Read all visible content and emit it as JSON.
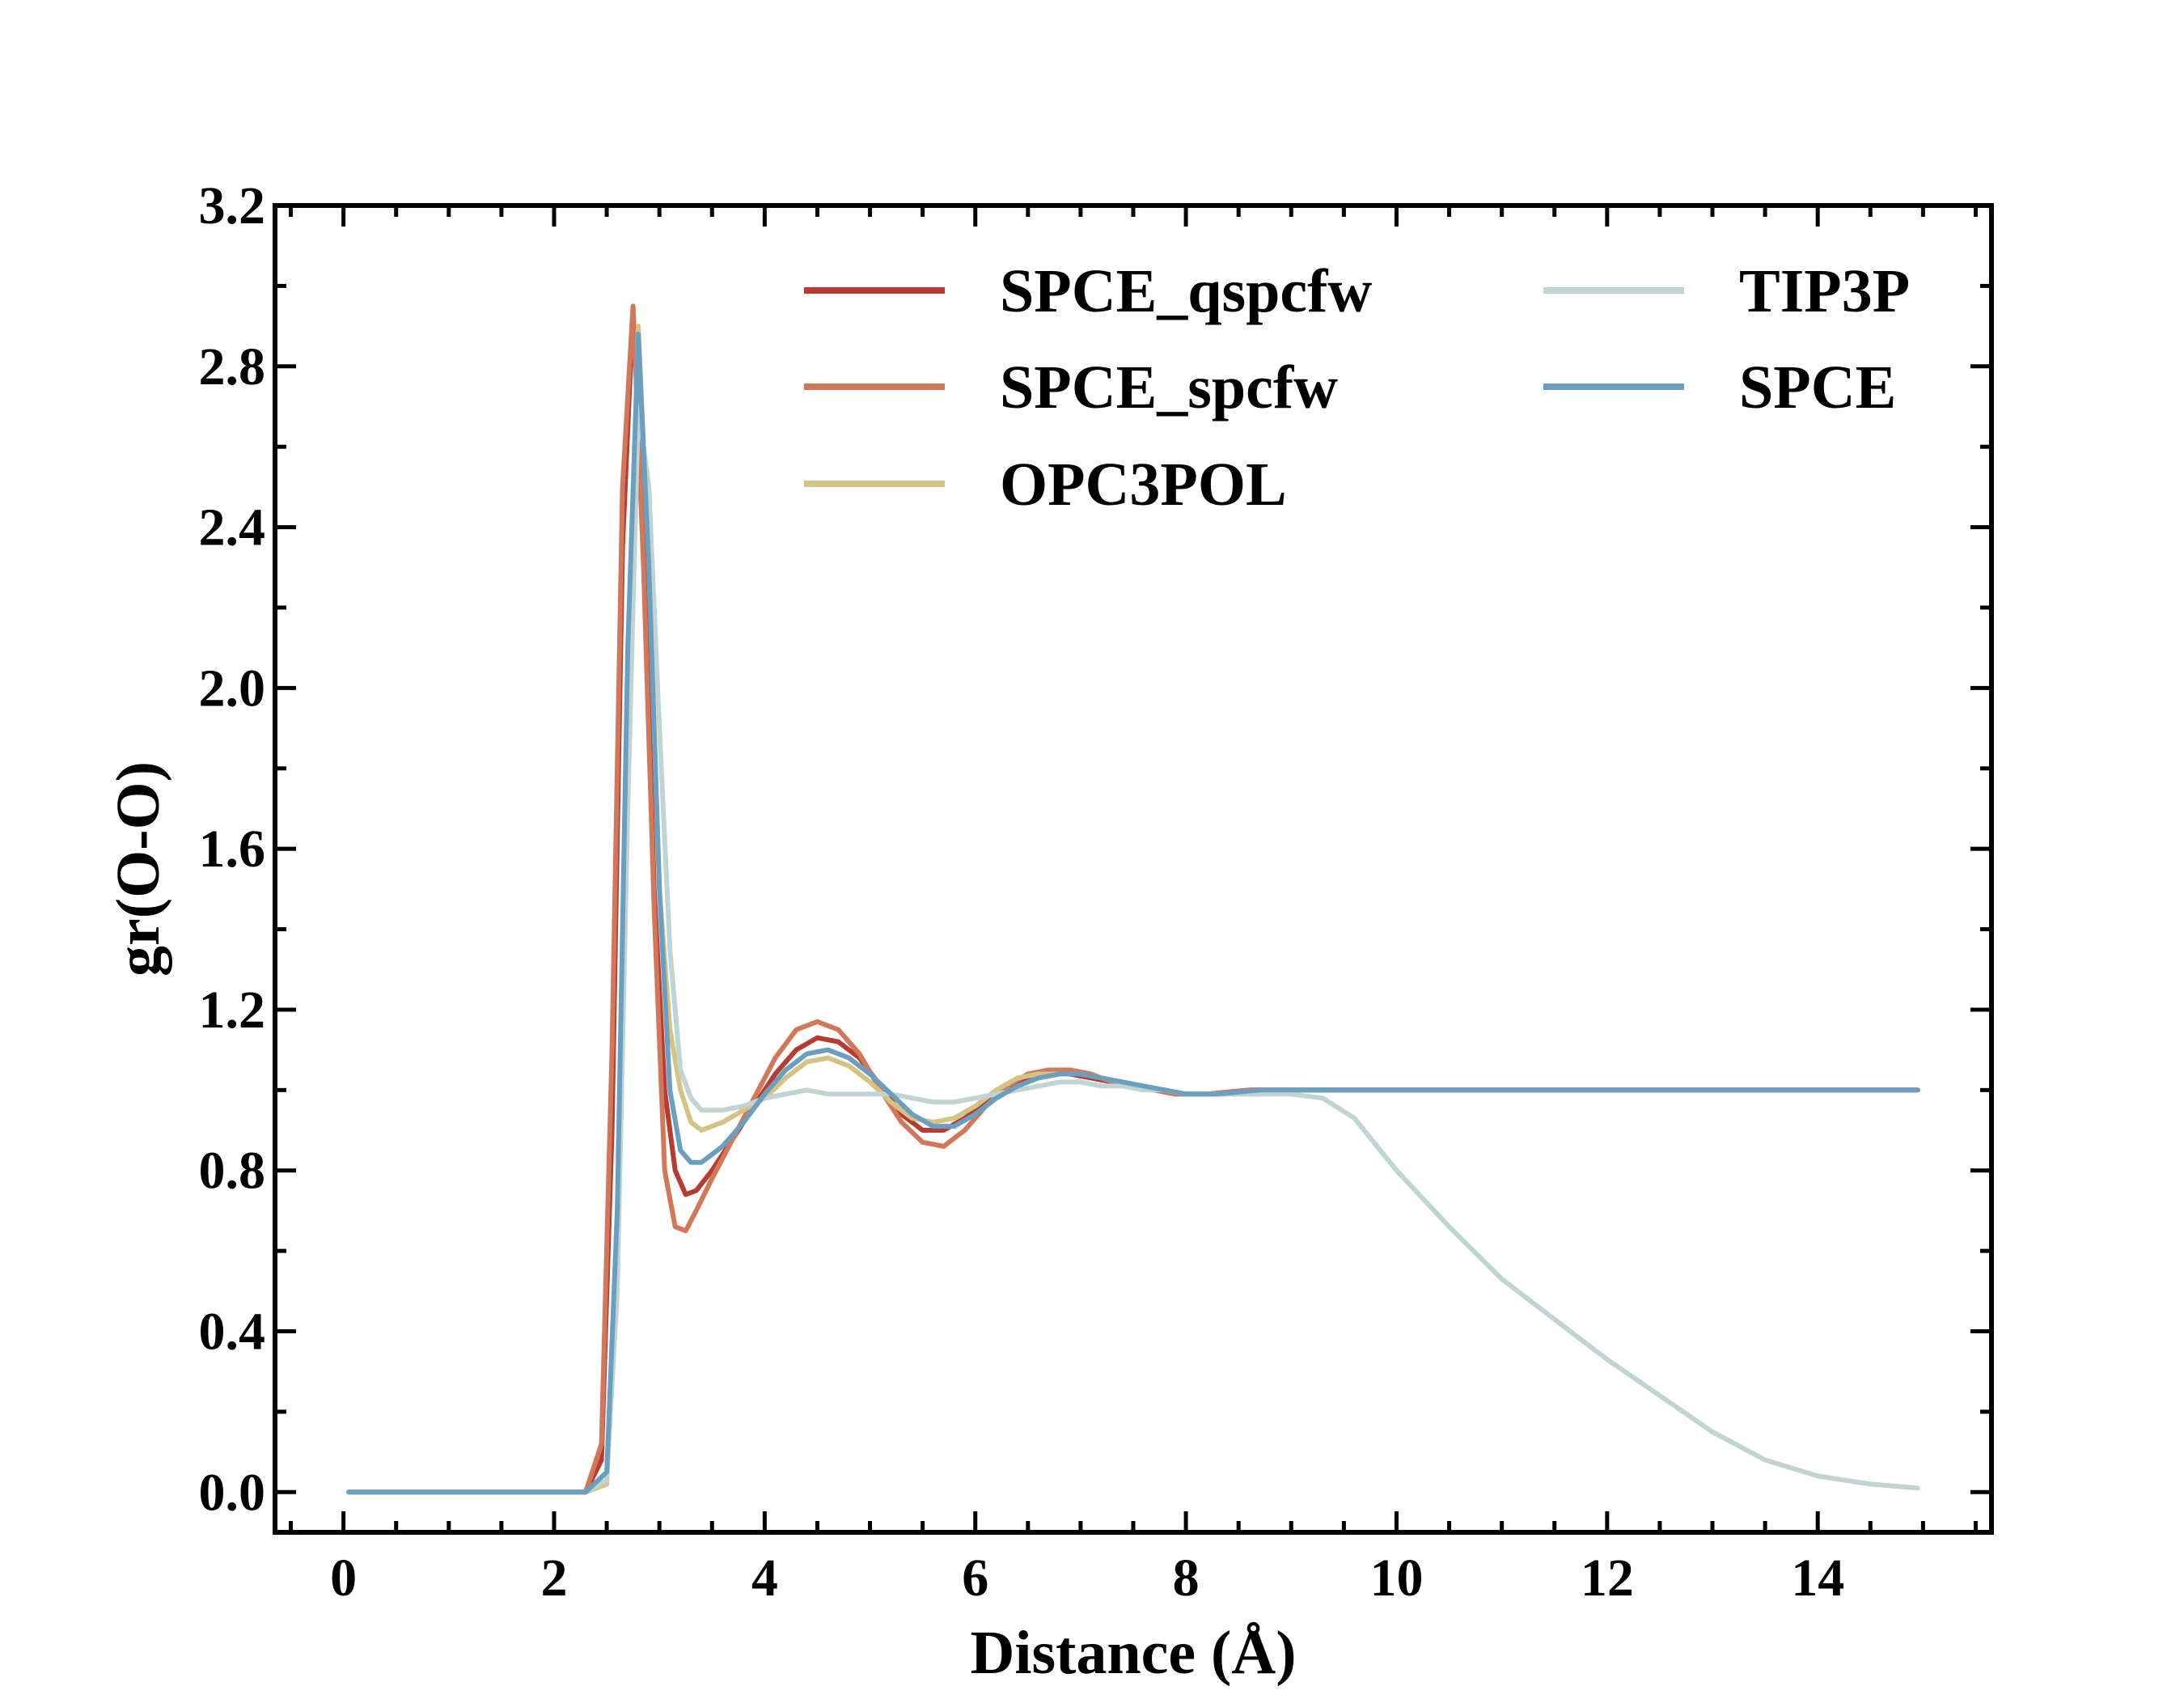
{
  "chart_data": {
    "type": "line",
    "title": "",
    "xlabel": "Distance (Å)",
    "ylabel": "gr(O-O)",
    "xlim": [
      -0.65,
      15.65
    ],
    "ylim": [
      -0.1,
      3.2
    ],
    "xticks": [
      0,
      2,
      4,
      6,
      8,
      10,
      12,
      14
    ],
    "yticks": [
      0.0,
      0.4,
      0.8,
      1.2,
      1.6,
      2.0,
      2.4,
      2.8,
      3.2
    ],
    "xtick_labels": [
      "0",
      "2",
      "4",
      "6",
      "8",
      "10",
      "12",
      "14"
    ],
    "ytick_labels": [
      "0.0",
      "0.4",
      "0.8",
      "1.2",
      "1.6",
      "2.0",
      "2.4",
      "2.8",
      "3.2"
    ],
    "grid": false,
    "legend": "upper right, two columns",
    "series": [
      {
        "name": "SPCE_qspcfw",
        "color": "#b83a30",
        "x": [
          0.05,
          2.3,
          2.45,
          2.55,
          2.65,
          2.75,
          2.85,
          2.95,
          3.05,
          3.15,
          3.25,
          3.35,
          3.5,
          3.7,
          3.9,
          4.1,
          4.3,
          4.5,
          4.7,
          4.9,
          5.1,
          5.3,
          5.5,
          5.7,
          5.9,
          6.1,
          6.3,
          6.5,
          6.7,
          6.9,
          7.1,
          7.3,
          7.5,
          7.7,
          7.9,
          8.2,
          8.6,
          9.0,
          9.5,
          10.0,
          10.5,
          11.0,
          12.0,
          13.0,
          14.0,
          14.95
        ],
        "y": [
          0.0,
          0.0,
          0.08,
          0.9,
          2.35,
          2.94,
          2.4,
          1.5,
          1.0,
          0.8,
          0.74,
          0.75,
          0.8,
          0.88,
          0.96,
          1.04,
          1.1,
          1.13,
          1.12,
          1.08,
          1.01,
          0.94,
          0.9,
          0.9,
          0.93,
          0.97,
          1.01,
          1.03,
          1.04,
          1.04,
          1.03,
          1.02,
          1.01,
          1.0,
          0.99,
          0.99,
          1.0,
          1.0,
          1.0,
          1.0,
          1.0,
          1.0,
          1.0,
          1.0,
          1.0,
          1.0
        ]
      },
      {
        "name": "SPCE_spcfw",
        "color": "#d2785a",
        "x": [
          0.05,
          2.3,
          2.45,
          2.55,
          2.65,
          2.75,
          2.85,
          2.95,
          3.05,
          3.15,
          3.25,
          3.35,
          3.5,
          3.7,
          3.9,
          4.1,
          4.3,
          4.5,
          4.7,
          4.9,
          5.1,
          5.3,
          5.5,
          5.7,
          5.9,
          6.1,
          6.3,
          6.5,
          6.7,
          6.9,
          7.1,
          7.3,
          7.5,
          7.7,
          7.9,
          8.2,
          8.6,
          9.0,
          9.5,
          10.0,
          10.5,
          11.0,
          12.0,
          13.0,
          14.0,
          14.95
        ],
        "y": [
          0.0,
          0.0,
          0.12,
          1.1,
          2.5,
          2.95,
          2.3,
          1.45,
          0.8,
          0.66,
          0.65,
          0.7,
          0.78,
          0.88,
          0.98,
          1.08,
          1.15,
          1.17,
          1.15,
          1.09,
          1.0,
          0.92,
          0.87,
          0.86,
          0.9,
          0.96,
          1.01,
          1.04,
          1.05,
          1.05,
          1.04,
          1.02,
          1.01,
          1.0,
          0.99,
          0.99,
          1.0,
          1.0,
          1.0,
          1.0,
          1.0,
          1.0,
          1.0,
          1.0,
          1.0,
          1.0
        ]
      },
      {
        "name": "OPC3POL",
        "color": "#d4c483",
        "x": [
          0.05,
          2.3,
          2.5,
          2.6,
          2.7,
          2.8,
          2.9,
          3.0,
          3.1,
          3.2,
          3.3,
          3.4,
          3.6,
          3.8,
          4.0,
          4.2,
          4.4,
          4.6,
          4.8,
          5.0,
          5.2,
          5.4,
          5.6,
          5.8,
          6.0,
          6.2,
          6.4,
          6.6,
          6.8,
          7.0,
          7.2,
          7.4,
          7.6,
          7.8,
          8.0,
          8.3,
          8.7,
          9.0,
          9.5,
          10.0,
          10.5,
          11.0,
          12.0,
          13.0,
          14.0,
          14.95
        ],
        "y": [
          0.0,
          0.0,
          0.02,
          0.6,
          2.0,
          2.9,
          2.3,
          1.5,
          1.15,
          1.0,
          0.92,
          0.9,
          0.92,
          0.95,
          0.98,
          1.03,
          1.07,
          1.08,
          1.06,
          1.02,
          0.97,
          0.93,
          0.92,
          0.93,
          0.96,
          1.0,
          1.03,
          1.04,
          1.04,
          1.04,
          1.03,
          1.02,
          1.01,
          1.0,
          0.99,
          0.99,
          0.99,
          1.0,
          1.0,
          1.0,
          1.0,
          1.0,
          1.0,
          1.0,
          1.0,
          1.0
        ]
      },
      {
        "name": "TIP3P",
        "color": "#bfd4d3",
        "x": [
          0.05,
          2.3,
          2.5,
          2.6,
          2.7,
          2.8,
          2.9,
          3.0,
          3.1,
          3.2,
          3.3,
          3.4,
          3.6,
          3.8,
          4.0,
          4.2,
          4.4,
          4.6,
          4.8,
          5.0,
          5.2,
          5.4,
          5.6,
          5.8,
          6.0,
          6.2,
          6.4,
          6.6,
          6.8,
          7.0,
          7.2,
          7.4,
          7.6,
          7.8,
          8.0,
          8.5,
          9.0,
          9.3,
          9.6,
          10.0,
          10.5,
          11.0,
          11.5,
          12.0,
          12.5,
          13.0,
          13.5,
          14.0,
          14.5,
          14.95
        ],
        "y": [
          0.0,
          0.0,
          0.03,
          0.5,
          1.7,
          2.7,
          2.5,
          1.9,
          1.35,
          1.05,
          0.98,
          0.95,
          0.95,
          0.96,
          0.98,
          0.99,
          1.0,
          0.99,
          0.99,
          0.99,
          0.99,
          0.98,
          0.97,
          0.97,
          0.98,
          0.99,
          1.0,
          1.01,
          1.02,
          1.02,
          1.01,
          1.01,
          1.0,
          1.0,
          0.99,
          0.99,
          0.99,
          0.98,
          0.93,
          0.8,
          0.66,
          0.53,
          0.43,
          0.33,
          0.24,
          0.15,
          0.08,
          0.04,
          0.02,
          0.01
        ]
      },
      {
        "name": "SPCE",
        "color": "#6a9fbf",
        "x": [
          0.05,
          2.3,
          2.5,
          2.6,
          2.7,
          2.8,
          2.9,
          3.0,
          3.1,
          3.2,
          3.3,
          3.4,
          3.6,
          3.8,
          4.0,
          4.2,
          4.4,
          4.6,
          4.8,
          5.0,
          5.2,
          5.4,
          5.6,
          5.8,
          6.0,
          6.2,
          6.4,
          6.6,
          6.8,
          7.0,
          7.2,
          7.4,
          7.6,
          7.8,
          8.0,
          8.3,
          8.7,
          9.0,
          9.5,
          10.0,
          10.5,
          11.0,
          12.0,
          13.0,
          14.0,
          14.95
        ],
        "y": [
          0.0,
          0.0,
          0.05,
          0.7,
          2.1,
          2.88,
          2.3,
          1.5,
          1.0,
          0.85,
          0.82,
          0.82,
          0.86,
          0.92,
          0.99,
          1.05,
          1.09,
          1.1,
          1.08,
          1.04,
          0.99,
          0.94,
          0.91,
          0.91,
          0.94,
          0.98,
          1.01,
          1.03,
          1.04,
          1.04,
          1.03,
          1.02,
          1.01,
          1.0,
          0.99,
          0.99,
          1.0,
          1.0,
          1.0,
          1.0,
          1.0,
          1.0,
          1.0,
          1.0,
          1.0,
          1.0
        ]
      }
    ]
  }
}
